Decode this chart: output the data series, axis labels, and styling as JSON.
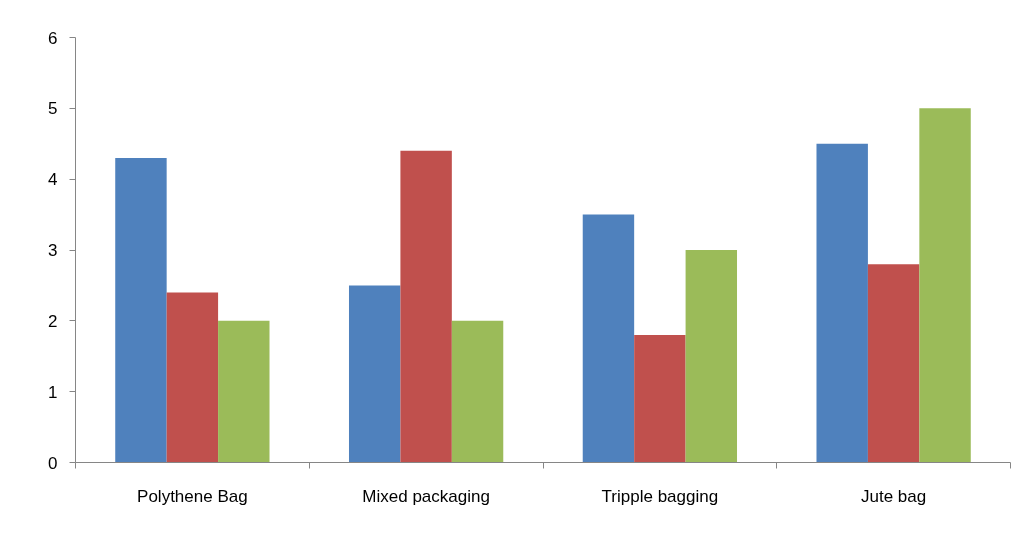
{
  "chart_data": {
    "type": "bar",
    "categories": [
      "Polythene Bag",
      "Mixed packaging",
      "Tripple bagging",
      "Jute bag"
    ],
    "series": [
      {
        "color": "#4f81bd",
        "values": [
          4.3,
          2.5,
          3.5,
          4.5
        ]
      },
      {
        "color": "#c0504d",
        "values": [
          2.4,
          4.4,
          1.8,
          2.8
        ]
      },
      {
        "color": "#9bbb59",
        "values": [
          2.0,
          2.0,
          3.0,
          5.0
        ]
      }
    ],
    "ylim": [
      0,
      6
    ],
    "yticks": [
      0,
      1,
      2,
      3,
      4,
      5,
      6
    ]
  }
}
